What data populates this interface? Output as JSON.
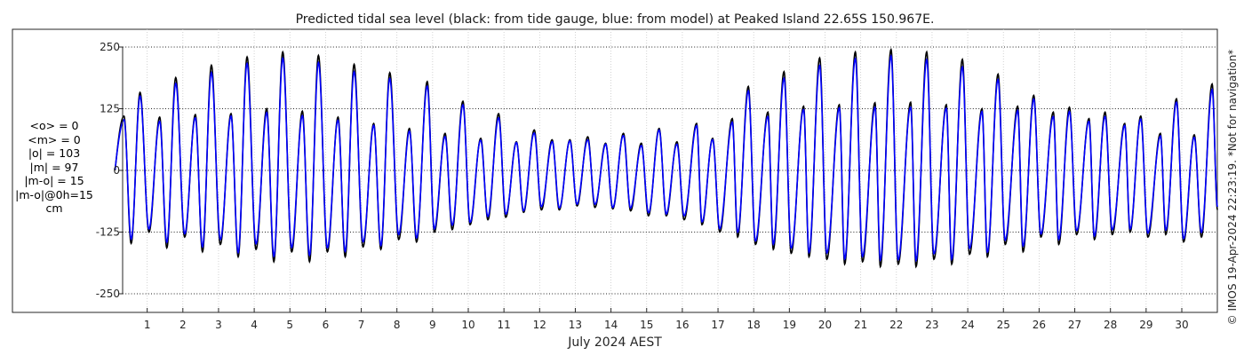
{
  "chart_data": {
    "type": "line",
    "title": "Predicted tidal sea level (black: from tide gauge, blue: from model) at Peaked Island 22.65S 150.967E.",
    "xlabel": "July 2024 AEST",
    "ylabel": "",
    "x_ticks": [
      "1",
      "2",
      "3",
      "4",
      "5",
      "6",
      "7",
      "8",
      "9",
      "10",
      "11",
      "12",
      "13",
      "14",
      "15",
      "16",
      "17",
      "18",
      "19",
      "20",
      "21",
      "22",
      "23",
      "24",
      "25",
      "26",
      "27",
      "28",
      "29",
      "30"
    ],
    "y_ticks": [
      -250,
      -125,
      0,
      125,
      250
    ],
    "ylim": [
      -250,
      250
    ],
    "xlim_days": [
      0.1,
      31.0
    ],
    "grid": true,
    "semidiurnal_period_hours": 12.42,
    "series": [
      {
        "name": "black: from tide gauge",
        "color": "#000000",
        "high_tides": [
          [
            0.35,
            110
          ],
          [
            0.8,
            158
          ],
          [
            1.35,
            108
          ],
          [
            1.8,
            188
          ],
          [
            2.35,
            113
          ],
          [
            2.8,
            213
          ],
          [
            3.35,
            115
          ],
          [
            3.8,
            230
          ],
          [
            4.35,
            125
          ],
          [
            4.8,
            240
          ],
          [
            5.35,
            120
          ],
          [
            5.8,
            233
          ],
          [
            6.35,
            108
          ],
          [
            6.8,
            215
          ],
          [
            7.35,
            95
          ],
          [
            7.8,
            198
          ],
          [
            8.35,
            85
          ],
          [
            8.85,
            180
          ],
          [
            9.35,
            75
          ],
          [
            9.85,
            140
          ],
          [
            10.35,
            65
          ],
          [
            10.85,
            115
          ],
          [
            11.35,
            58
          ],
          [
            11.85,
            82
          ],
          [
            12.35,
            62
          ],
          [
            12.85,
            62
          ],
          [
            13.35,
            68
          ],
          [
            13.85,
            55
          ],
          [
            14.35,
            75
          ],
          [
            14.85,
            55
          ],
          [
            15.35,
            85
          ],
          [
            15.85,
            58
          ],
          [
            16.4,
            95
          ],
          [
            16.85,
            65
          ],
          [
            17.4,
            105
          ],
          [
            17.85,
            170
          ],
          [
            18.4,
            118
          ],
          [
            18.85,
            200
          ],
          [
            19.4,
            130
          ],
          [
            19.85,
            228
          ],
          [
            20.4,
            133
          ],
          [
            20.85,
            240
          ],
          [
            21.4,
            137
          ],
          [
            21.85,
            245
          ],
          [
            22.4,
            138
          ],
          [
            22.85,
            240
          ],
          [
            23.4,
            133
          ],
          [
            23.85,
            225
          ],
          [
            24.4,
            125
          ],
          [
            24.85,
            195
          ],
          [
            25.4,
            130
          ],
          [
            25.85,
            152
          ],
          [
            26.4,
            118
          ],
          [
            26.85,
            128
          ],
          [
            27.4,
            105
          ],
          [
            27.85,
            118
          ],
          [
            28.4,
            95
          ],
          [
            28.85,
            110
          ],
          [
            29.4,
            75
          ],
          [
            29.85,
            145
          ],
          [
            30.35,
            72
          ],
          [
            30.85,
            175
          ]
        ],
        "low_tides": [
          [
            0.55,
            -148
          ],
          [
            1.05,
            -125
          ],
          [
            1.55,
            -157
          ],
          [
            2.05,
            -135
          ],
          [
            2.55,
            -165
          ],
          [
            3.05,
            -150
          ],
          [
            3.55,
            -175
          ],
          [
            4.05,
            -160
          ],
          [
            4.55,
            -185
          ],
          [
            5.05,
            -165
          ],
          [
            5.55,
            -185
          ],
          [
            6.05,
            -165
          ],
          [
            6.55,
            -175
          ],
          [
            7.05,
            -155
          ],
          [
            7.55,
            -160
          ],
          [
            8.05,
            -140
          ],
          [
            8.55,
            -145
          ],
          [
            9.05,
            -125
          ],
          [
            9.55,
            -120
          ],
          [
            10.05,
            -110
          ],
          [
            10.55,
            -100
          ],
          [
            11.05,
            -95
          ],
          [
            11.55,
            -85
          ],
          [
            12.05,
            -80
          ],
          [
            12.55,
            -80
          ],
          [
            13.05,
            -72
          ],
          [
            13.55,
            -75
          ],
          [
            14.05,
            -78
          ],
          [
            14.55,
            -82
          ],
          [
            15.05,
            -92
          ],
          [
            15.55,
            -92
          ],
          [
            16.05,
            -100
          ],
          [
            16.55,
            -110
          ],
          [
            17.05,
            -125
          ],
          [
            17.55,
            -135
          ],
          [
            18.05,
            -150
          ],
          [
            18.55,
            -160
          ],
          [
            19.05,
            -168
          ],
          [
            19.55,
            -175
          ],
          [
            20.05,
            -180
          ],
          [
            20.55,
            -190
          ],
          [
            21.05,
            -185
          ],
          [
            21.55,
            -195
          ],
          [
            22.05,
            -190
          ],
          [
            22.55,
            -195
          ],
          [
            23.05,
            -180
          ],
          [
            23.55,
            -190
          ],
          [
            24.05,
            -170
          ],
          [
            24.55,
            -175
          ],
          [
            25.05,
            -150
          ],
          [
            25.55,
            -165
          ],
          [
            26.05,
            -135
          ],
          [
            26.55,
            -150
          ],
          [
            27.05,
            -130
          ],
          [
            27.55,
            -140
          ],
          [
            28.05,
            -130
          ],
          [
            28.55,
            -125
          ],
          [
            29.05,
            -135
          ],
          [
            29.55,
            -130
          ],
          [
            30.05,
            -145
          ],
          [
            30.55,
            -135
          ],
          [
            31.0,
            -80
          ]
        ]
      },
      {
        "name": "blue: from model",
        "color": "#0000ff",
        "amplitude_scale": 0.94
      }
    ]
  },
  "stats": {
    "mean_obs": "<o> = 0",
    "mean_model": "<m> = 0",
    "abs_obs": "|o| = 103",
    "abs_model": "|m| = 97",
    "abs_diff": "|m-o| = 15",
    "abs_diff_0h": "|m-o|@0h=15",
    "unit": "cm"
  },
  "copyright": "© IMOS 19-Apr-2024 22:23:19. *Not for navigation*"
}
